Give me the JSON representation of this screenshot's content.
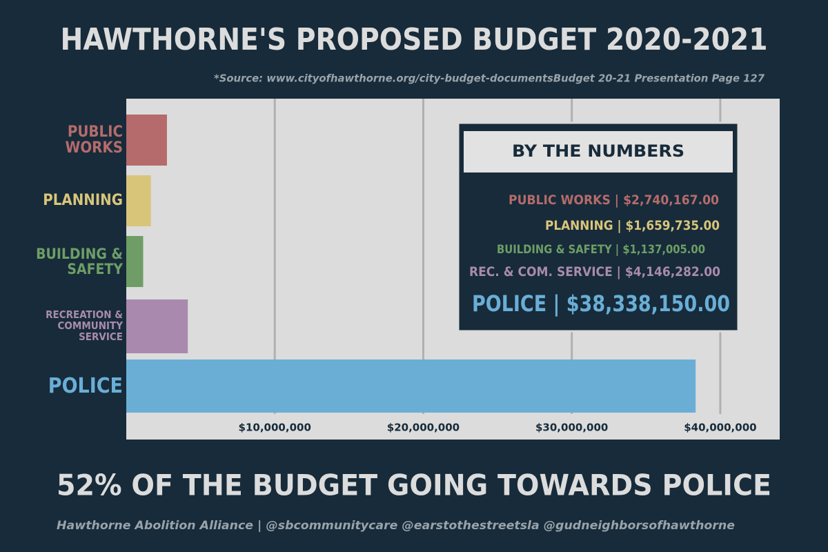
{
  "chart_data": {
    "type": "bar",
    "orientation": "horizontal",
    "title": "HAWTHORNE'S PROPOSED BUDGET 2020-2021",
    "source": "*Source: www.cityofhawthorne.org/city-budget-documentsBudget 20-21 Presentation Page 127",
    "subtitle": "52% OF THE BUDGET GOING TOWARDS POLICE",
    "footer": "Hawthorne Abolition Alliance | @sbcommunitycare @earstothestreetsla @gudneighborsofhawthorne",
    "categories": [
      "PUBLIC WORKS",
      "PLANNING",
      "BUILDING & SAFETY",
      "RECREATION & COMMUNITY SERVICE",
      "POLICE"
    ],
    "values": [
      2740167,
      1659735,
      1137005,
      4146282,
      38338150
    ],
    "value_labels": [
      "$2,740,167.00",
      "$1,659,735.00",
      "$1,137,005.00",
      "$4,146,282.00",
      "$38,338,150.00"
    ],
    "colors": [
      "#b56b6b",
      "#d9c57a",
      "#6e9e66",
      "#a98aae",
      "#6aaed6"
    ],
    "xlim": [
      0,
      44000000
    ],
    "xticks": [
      {
        "value": 10000000,
        "label": "$10,000,000"
      },
      {
        "value": 20000000,
        "label": "$20,000,000"
      },
      {
        "value": 30000000,
        "label": "$30,000,000"
      },
      {
        "value": 40000000,
        "label": "$40,000,000"
      }
    ],
    "grid": true,
    "box": {
      "title": "BY THE NUMBERS",
      "labels": [
        "PUBLIC WORKS",
        "PLANNING",
        "BUILDING & SAFETY",
        "REC. & COM. SERVICE",
        "POLICE"
      ],
      "separator": "|"
    }
  }
}
